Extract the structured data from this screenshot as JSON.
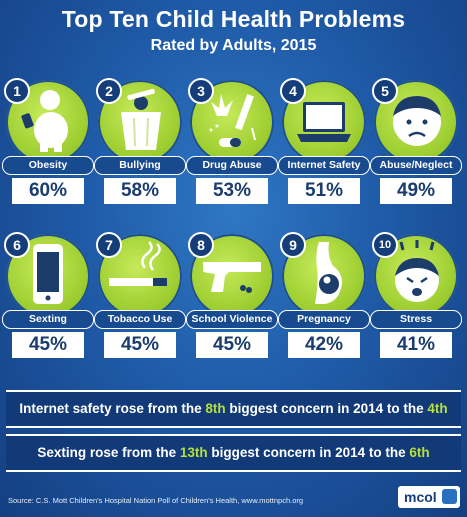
{
  "header": {
    "title": "Top Ten Child Health Problems",
    "subtitle": "Rated by Adults, 2015"
  },
  "items": [
    {
      "rank": "1",
      "label": "Obesity",
      "percent": "60%",
      "icon": "child-obesity-icon"
    },
    {
      "rank": "2",
      "label": "Bullying",
      "percent": "58%",
      "icon": "trash-can-bullying-icon"
    },
    {
      "rank": "3",
      "label": "Drug Abuse",
      "percent": "53%",
      "icon": "drugs-syringe-icon"
    },
    {
      "rank": "4",
      "label": "Internet Safety",
      "percent": "51%",
      "icon": "laptop-icon"
    },
    {
      "rank": "5",
      "label": "Abuse/Neglect",
      "percent": "49%",
      "icon": "sad-face-icon"
    },
    {
      "rank": "6",
      "label": "Sexting",
      "percent": "45%",
      "icon": "smartphone-icon"
    },
    {
      "rank": "7",
      "label": "Tobacco Use",
      "percent": "45%",
      "icon": "cigarette-icon"
    },
    {
      "rank": "8",
      "label": "School Violence",
      "percent": "45%",
      "icon": "handgun-icon"
    },
    {
      "rank": "9",
      "label": "Pregnancy",
      "percent": "42%",
      "icon": "pregnancy-icon"
    },
    {
      "rank": "10",
      "label": "Stress",
      "percent": "41%",
      "icon": "stressed-face-icon"
    }
  ],
  "banners": [
    {
      "pre": "Internet safety rose from the ",
      "from": "8th",
      "mid": " biggest concern in 2014 to the ",
      "to": "4th"
    },
    {
      "pre": "Sexting rose from the ",
      "from": "13th",
      "mid": " biggest concern in 2014 to the ",
      "to": "6th"
    }
  ],
  "footer": {
    "source": "Source:  C.S. Mott Children's Hospital Nation Poll of Children's Health, www.mottnpch.org",
    "logo": "mcol"
  },
  "colors": {
    "background": "#1f5ba8",
    "circle": "#9fcf32",
    "highlight": "#b6e03c",
    "banner": "#123a78"
  }
}
